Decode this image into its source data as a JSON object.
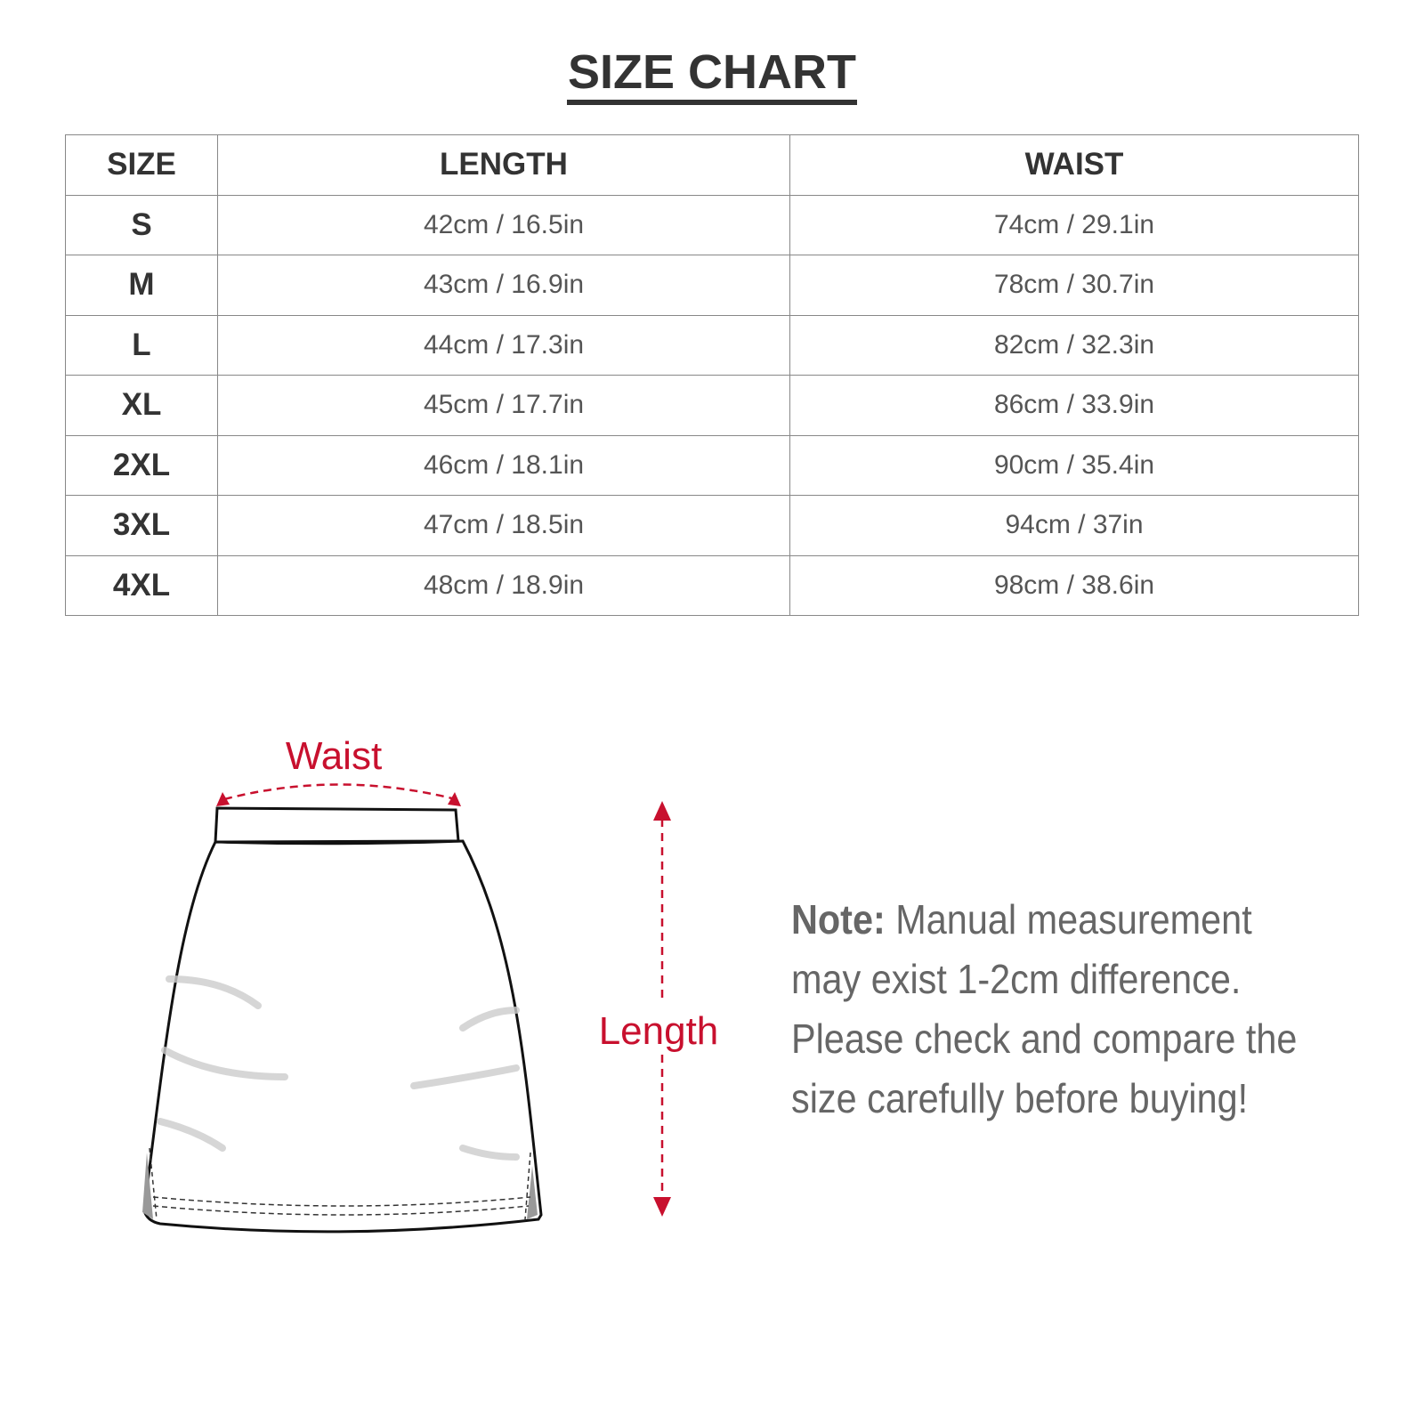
{
  "title": "SIZE CHART",
  "table": {
    "headers": [
      "SIZE",
      "LENGTH",
      "WAIST"
    ],
    "rows": [
      {
        "size": "S",
        "length": "42cm / 16.5in",
        "waist": "74cm / 29.1in"
      },
      {
        "size": "M",
        "length": "43cm / 16.9in",
        "waist": "78cm / 30.7in"
      },
      {
        "size": "L",
        "length": "44cm / 17.3in",
        "waist": "82cm / 32.3in"
      },
      {
        "size": "XL",
        "length": "45cm / 17.7in",
        "waist": "86cm / 33.9in"
      },
      {
        "size": "2XL",
        "length": "46cm / 18.1in",
        "waist": "90cm / 35.4in"
      },
      {
        "size": "3XL",
        "length": "47cm / 18.5in",
        "waist": "94cm / 37in"
      },
      {
        "size": "4XL",
        "length": "48cm / 18.9in",
        "waist": "98cm / 38.6in"
      }
    ]
  },
  "diagram": {
    "waist_label": "Waist",
    "length_label": "Length",
    "accent_color": "#c8102e"
  },
  "note": {
    "label": "Note:",
    "text": " Manual measurement may exist 1-2cm difference. Please check and compare the size carefully before buying!"
  }
}
